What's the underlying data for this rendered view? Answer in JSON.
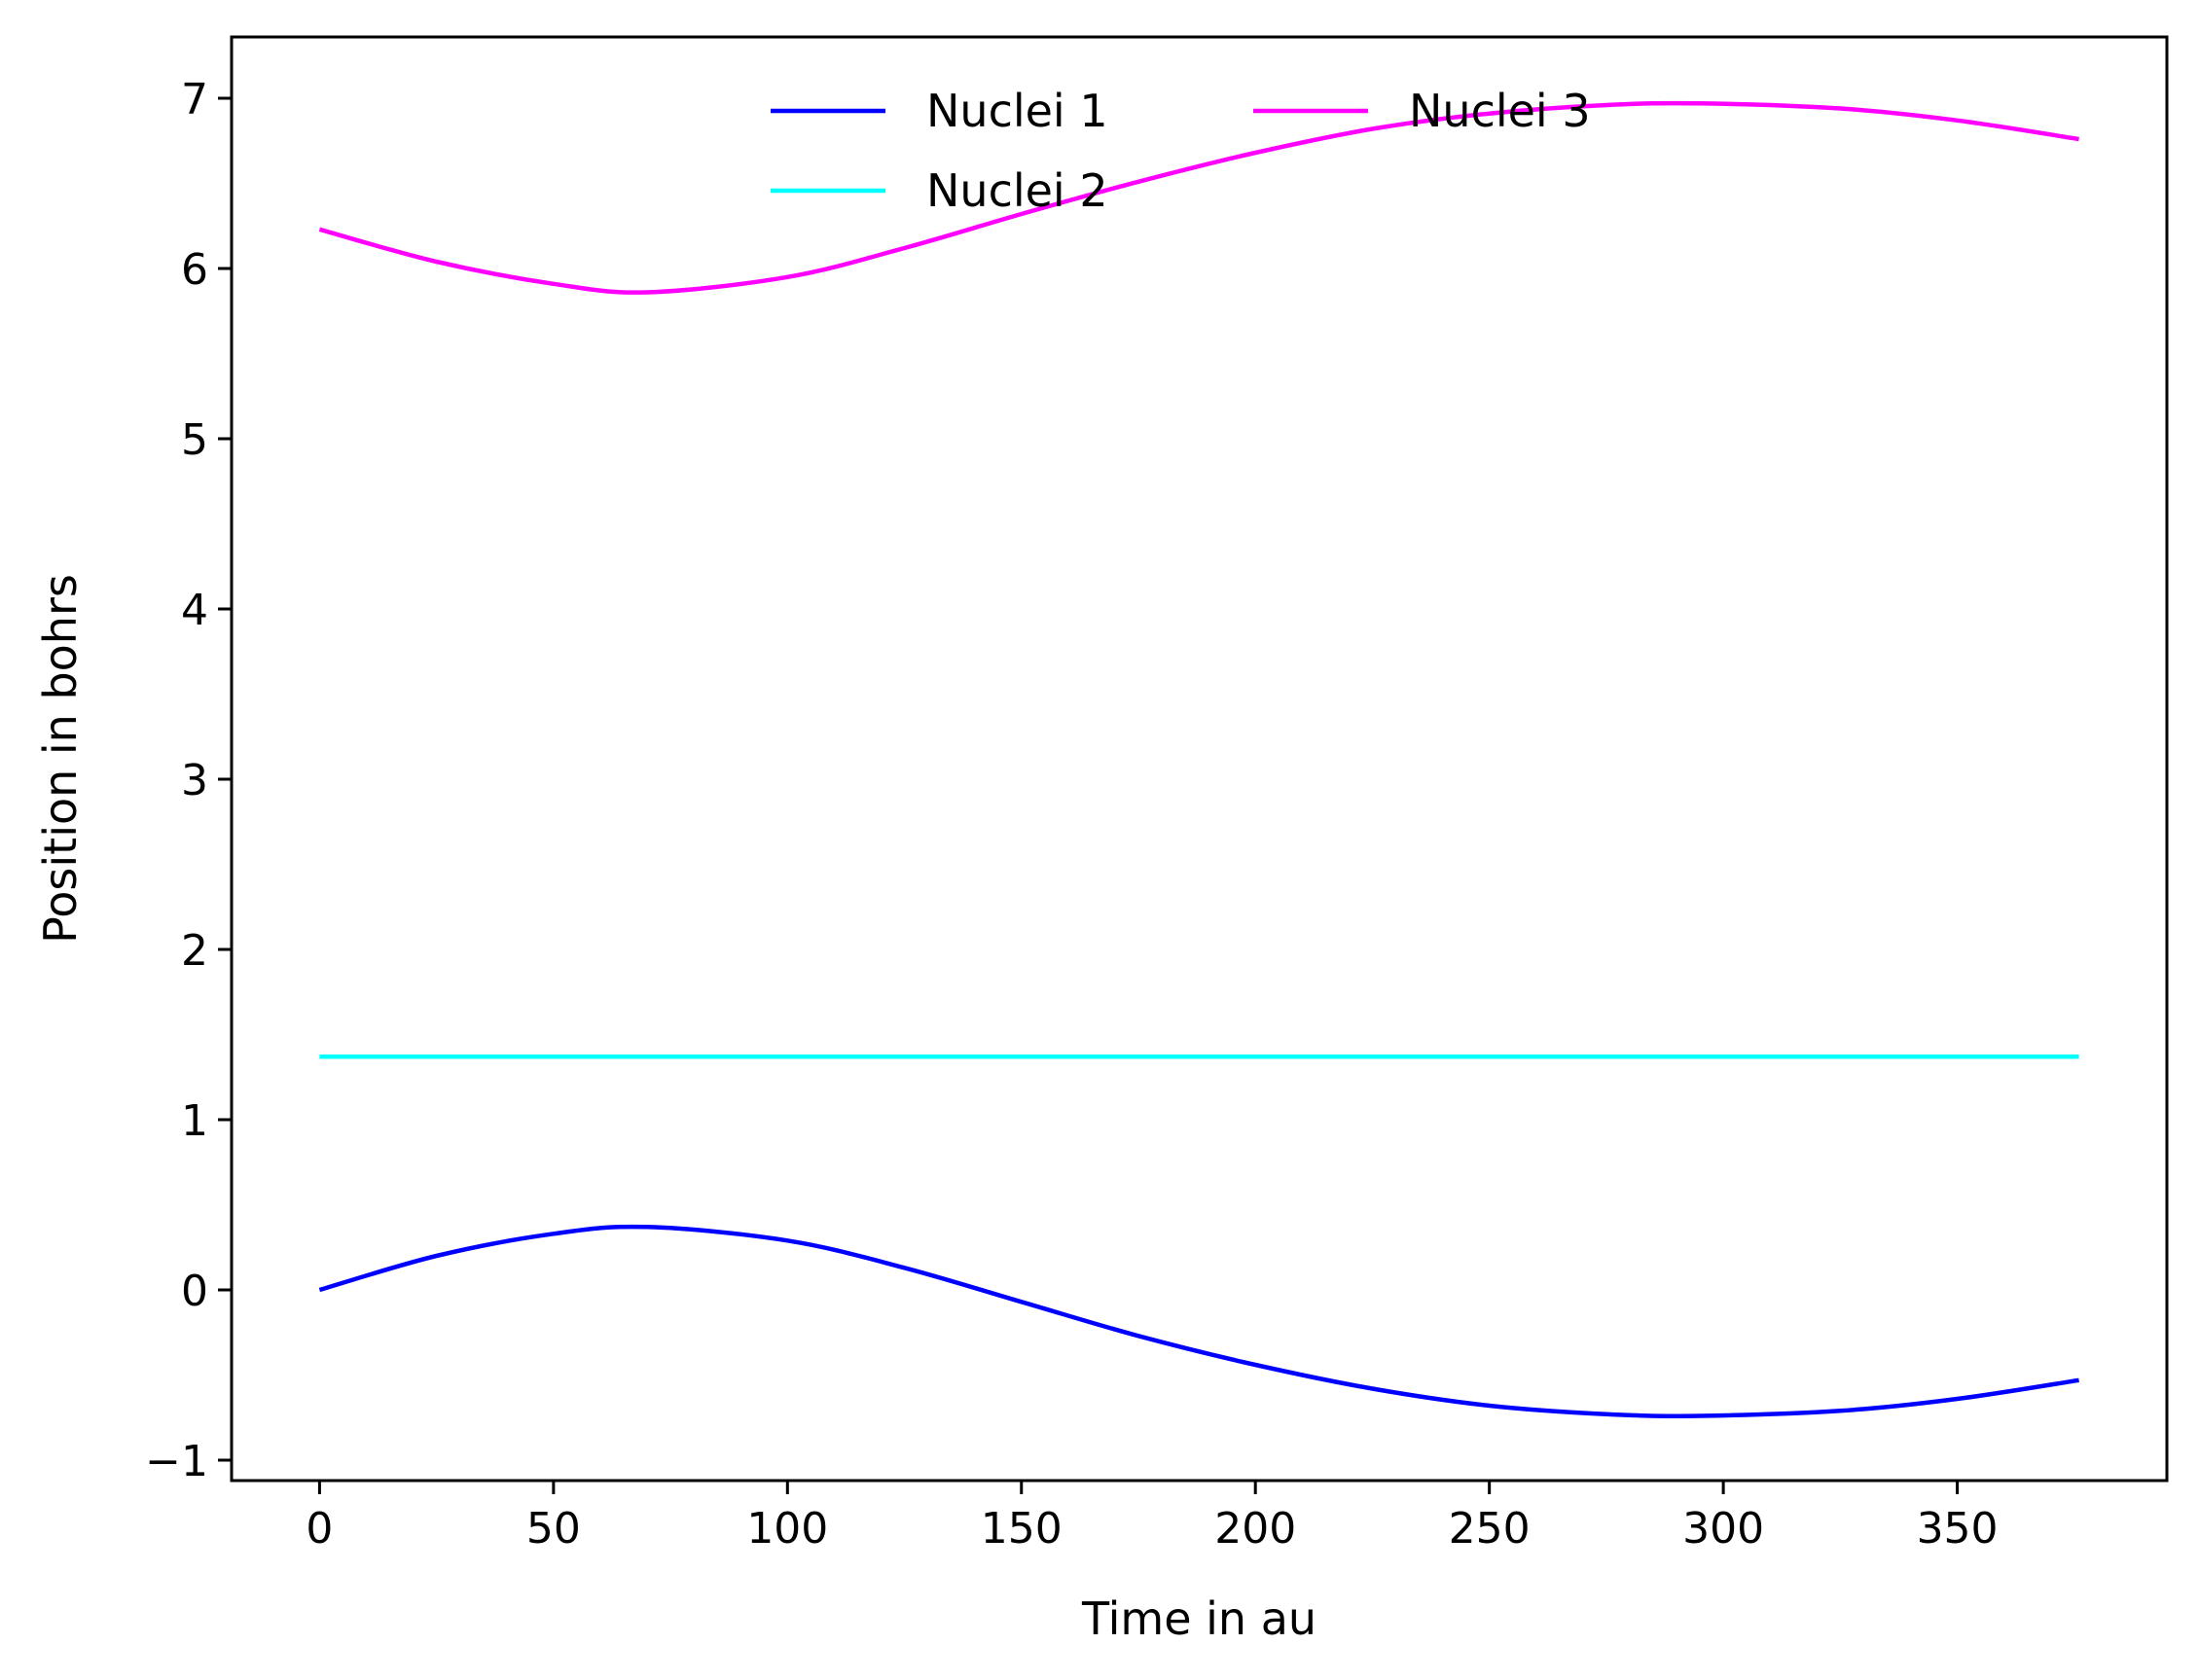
{
  "chart_data": {
    "type": "line",
    "title": "",
    "xlabel": "Time in au",
    "ylabel": "Position in bohrs",
    "xlim": [
      -18.8,
      394.8
    ],
    "ylim": [
      -1.12,
      7.36
    ],
    "xticks": [
      0,
      50,
      100,
      150,
      200,
      250,
      300,
      350
    ],
    "yticks": [
      -1,
      0,
      1,
      2,
      3,
      4,
      5,
      6,
      7
    ],
    "xtick_labels": [
      "0",
      "50",
      "100",
      "150",
      "200",
      "250",
      "300",
      "350"
    ],
    "ytick_labels": [
      "−1",
      "0",
      "1",
      "2",
      "3",
      "4",
      "5",
      "6",
      "7"
    ],
    "grid": false,
    "legend": {
      "placement": "upper-center",
      "columns": 2
    },
    "x": [
      0,
      25,
      50,
      70,
      100,
      125,
      150,
      175,
      200,
      225,
      250,
      275,
      295,
      325,
      350,
      376
    ],
    "series": [
      {
        "name": "Nuclei 1",
        "color": "#0000ff",
        "values": [
          0.0,
          0.2,
          0.33,
          0.37,
          0.29,
          0.13,
          -0.07,
          -0.27,
          -0.44,
          -0.58,
          -0.68,
          -0.73,
          -0.74,
          -0.71,
          -0.64,
          -0.53
        ]
      },
      {
        "name": "Nuclei 2",
        "color": "#00ffff",
        "values": [
          1.37,
          1.37,
          1.37,
          1.37,
          1.37,
          1.37,
          1.37,
          1.37,
          1.37,
          1.37,
          1.37,
          1.37,
          1.37,
          1.37,
          1.37,
          1.37
        ]
      },
      {
        "name": "Nuclei 3",
        "color": "#ff00ff",
        "values": [
          6.23,
          6.04,
          5.91,
          5.86,
          5.95,
          6.12,
          6.32,
          6.51,
          6.68,
          6.82,
          6.91,
          6.96,
          6.97,
          6.94,
          6.87,
          6.76
        ]
      }
    ]
  }
}
